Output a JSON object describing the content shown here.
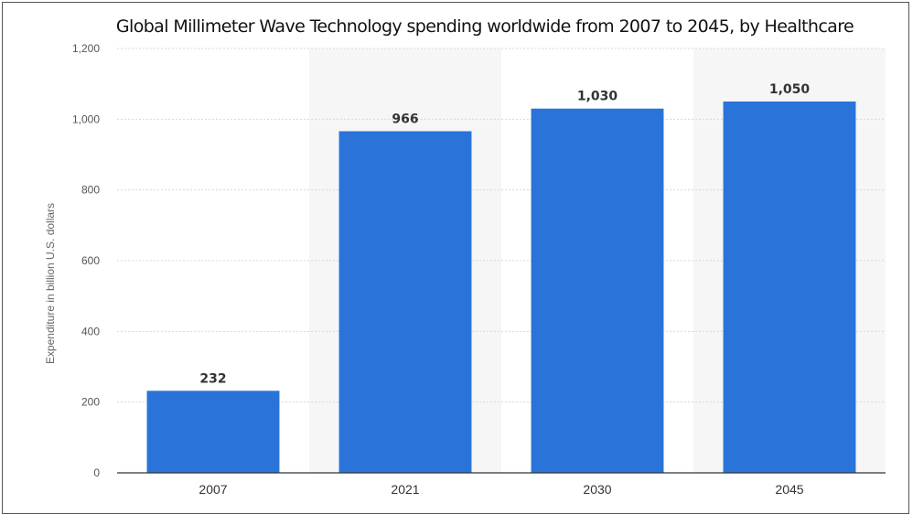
{
  "chart_data": {
    "type": "bar",
    "title": "Global Millimeter Wave Technology spending worldwide from 2007 to 2045, by Healthcare",
    "ylabel": "Expenditure in billion U.S. dollars",
    "xlabel": "",
    "categories": [
      "2007",
      "2021",
      "2030",
      "2045"
    ],
    "values": [
      232,
      966,
      1030,
      1050
    ],
    "data_labels": [
      "232",
      "966",
      "1,030",
      "1,050"
    ],
    "ylim": [
      0,
      1200
    ],
    "yticks": [
      0,
      200,
      400,
      600,
      800,
      1000,
      1200
    ],
    "ytick_labels": [
      "0",
      "200",
      "400",
      "600",
      "800",
      "1,000",
      "1,200"
    ],
    "grid": true,
    "bar_color": "#2a74d9"
  }
}
